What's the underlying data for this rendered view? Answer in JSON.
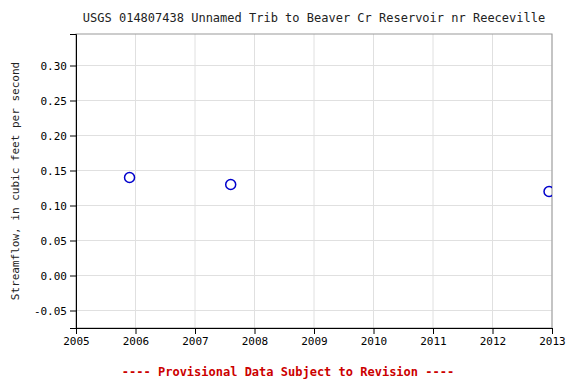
{
  "chart_data": {
    "type": "scatter",
    "title": "USGS 014807438 Unnamed Trib to Beaver Cr Reservoir nr Reeceville",
    "y_label": "Streamflow, in cubic feet per second",
    "x": [
      2005.9,
      2007.6,
      2012.95
    ],
    "values": [
      0.14,
      0.13,
      0.12
    ],
    "color": "#0000cc",
    "xlim": [
      2005,
      2013
    ],
    "ylim": [
      -0.075,
      0.345
    ],
    "xticks": [
      2005,
      2006,
      2007,
      2008,
      2009,
      2010,
      2011,
      2012,
      2013
    ],
    "yticks": [
      -0.05,
      {
        "value": 0.0,
        "label": "0.00"
      },
      0.05,
      {
        "value": 0.1,
        "label": "0.10"
      },
      0.15,
      {
        "value": 0.2,
        "label": "0.20"
      },
      0.25,
      {
        "value": 0.3,
        "label": "0.30"
      }
    ],
    "grid": true,
    "annotations": [
      {
        "text": "---- Provisional Data Subject to Revision ----",
        "color": "#cc0000"
      }
    ]
  }
}
